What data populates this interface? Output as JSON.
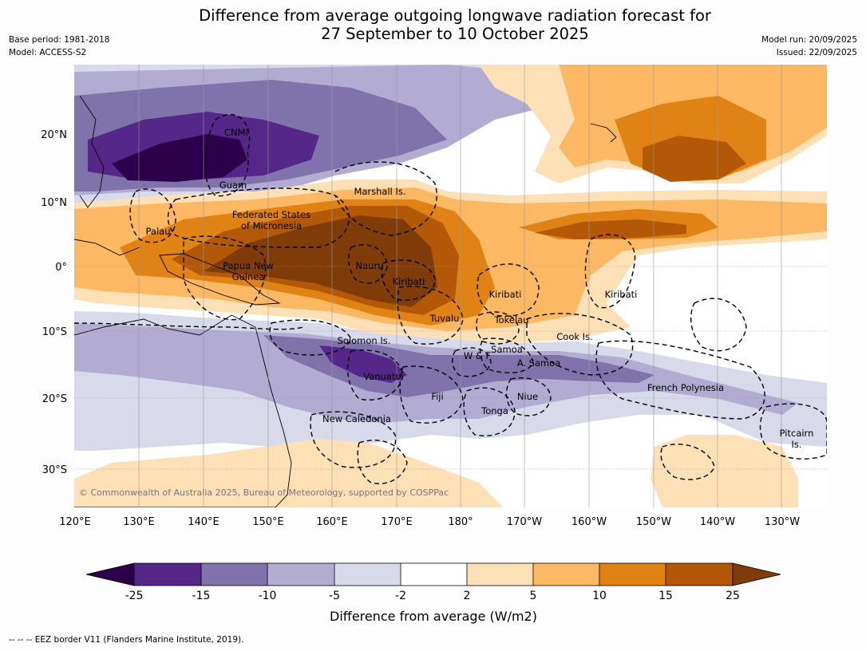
{
  "title": {
    "line1": "Difference from average outgoing longwave radiation forecast for",
    "line2": "27 September to 10 October 2025"
  },
  "meta": {
    "base_period": "Base period: 1981-2018",
    "model": "Model: ACCESS-S2",
    "model_run": "Model run: 20/09/2025",
    "issued": "Issued: 22/09/2025"
  },
  "axes": {
    "lon_labels": [
      "120°E",
      "130°E",
      "140°E",
      "150°E",
      "160°E",
      "170°E",
      "180°",
      "170°W",
      "160°W",
      "150°W",
      "140°W",
      "130°W"
    ],
    "lat_labels": [
      "20°N",
      "10°N",
      "0°",
      "10°S",
      "20°S",
      "30°S"
    ]
  },
  "places": [
    "CNMI",
    "Guam",
    "Marshall Is.",
    "Federated States",
    "of Micronesia",
    "Palau",
    "Papua New",
    "Guinea",
    "Nauru",
    "Kiribati",
    "Kiribati",
    "Kiribati",
    "Tuvalu",
    "Tokelau",
    "Cook Is.",
    "Solomon Is.",
    "W & F",
    "Samoa",
    "A. Samoa",
    "Vanuatu",
    "Fiji",
    "Niue",
    "Tonga",
    "French Polynesia",
    "New Caledonia",
    "Pitcairn",
    "Is."
  ],
  "copyright": "© Commonwealth of Australia 2025, Bureau of Meteorology, supported by COSPPac",
  "colorbar": {
    "title": "Difference from average (W/m2)",
    "boundaries": [
      "-25",
      "-15",
      "-10",
      "-5",
      "-2",
      "2",
      "5",
      "10",
      "15",
      "25"
    ],
    "colors": [
      "#2d004b",
      "#542788",
      "#8073ac",
      "#b2abd2",
      "#d8daeb",
      "#ffffff",
      "#fee0b6",
      "#fdb863",
      "#e08214",
      "#b35806",
      "#7f3b08"
    ]
  },
  "footnote": "--  --  -- EEZ border V11 (Flanders Marine Institute, 2019)."
}
